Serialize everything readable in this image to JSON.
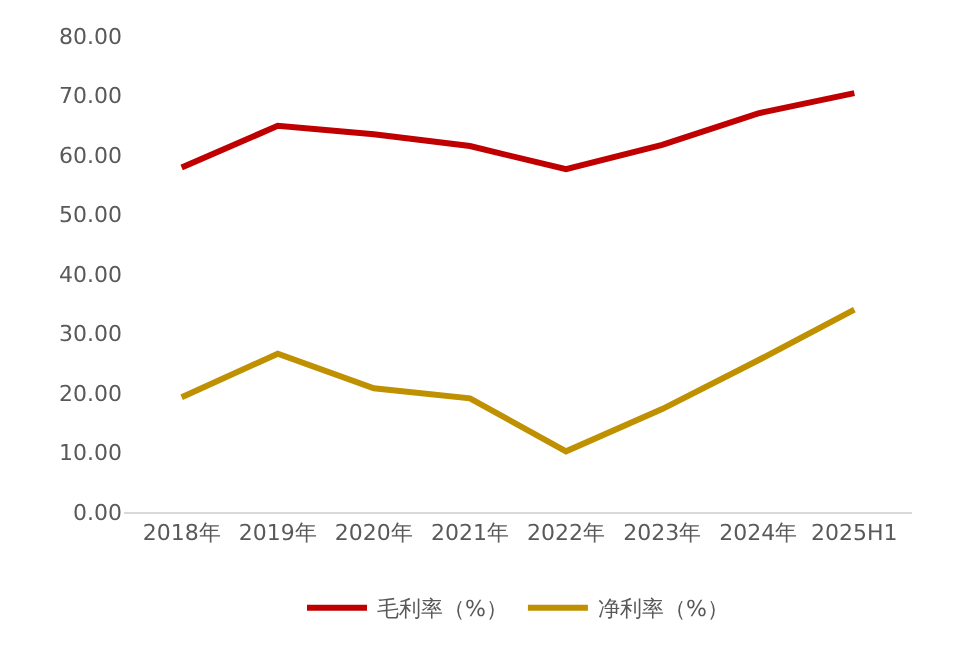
{
  "chart_data": {
    "type": "line",
    "categories": [
      "2018年",
      "2019年",
      "2020年",
      "2021年",
      "2022年",
      "2023年",
      "2024年",
      "2025H1"
    ],
    "series": [
      {
        "name": "毛利率（%）",
        "color": "#c00000",
        "values": [
          57.9,
          64.9,
          63.5,
          61.5,
          57.6,
          61.7,
          67.0,
          70.4
        ]
      },
      {
        "name": "净利率（%）",
        "color": "#bf9000",
        "values": [
          19.3,
          26.6,
          20.8,
          19.1,
          10.2,
          17.3,
          25.5,
          34.0
        ]
      }
    ],
    "ylim": [
      0,
      80
    ],
    "yticks": [
      {
        "value": 0,
        "label": "0.00"
      },
      {
        "value": 10,
        "label": "10.00"
      },
      {
        "value": 20,
        "label": "20.00"
      },
      {
        "value": 30,
        "label": "30.00"
      },
      {
        "value": 40,
        "label": "40.00"
      },
      {
        "value": 50,
        "label": "50.00"
      },
      {
        "value": 60,
        "label": "60.00"
      },
      {
        "value": 70,
        "label": "70.00"
      },
      {
        "value": 80,
        "label": "80.00"
      }
    ],
    "legend": "bottom",
    "marker": "none",
    "line_style": "solid"
  }
}
